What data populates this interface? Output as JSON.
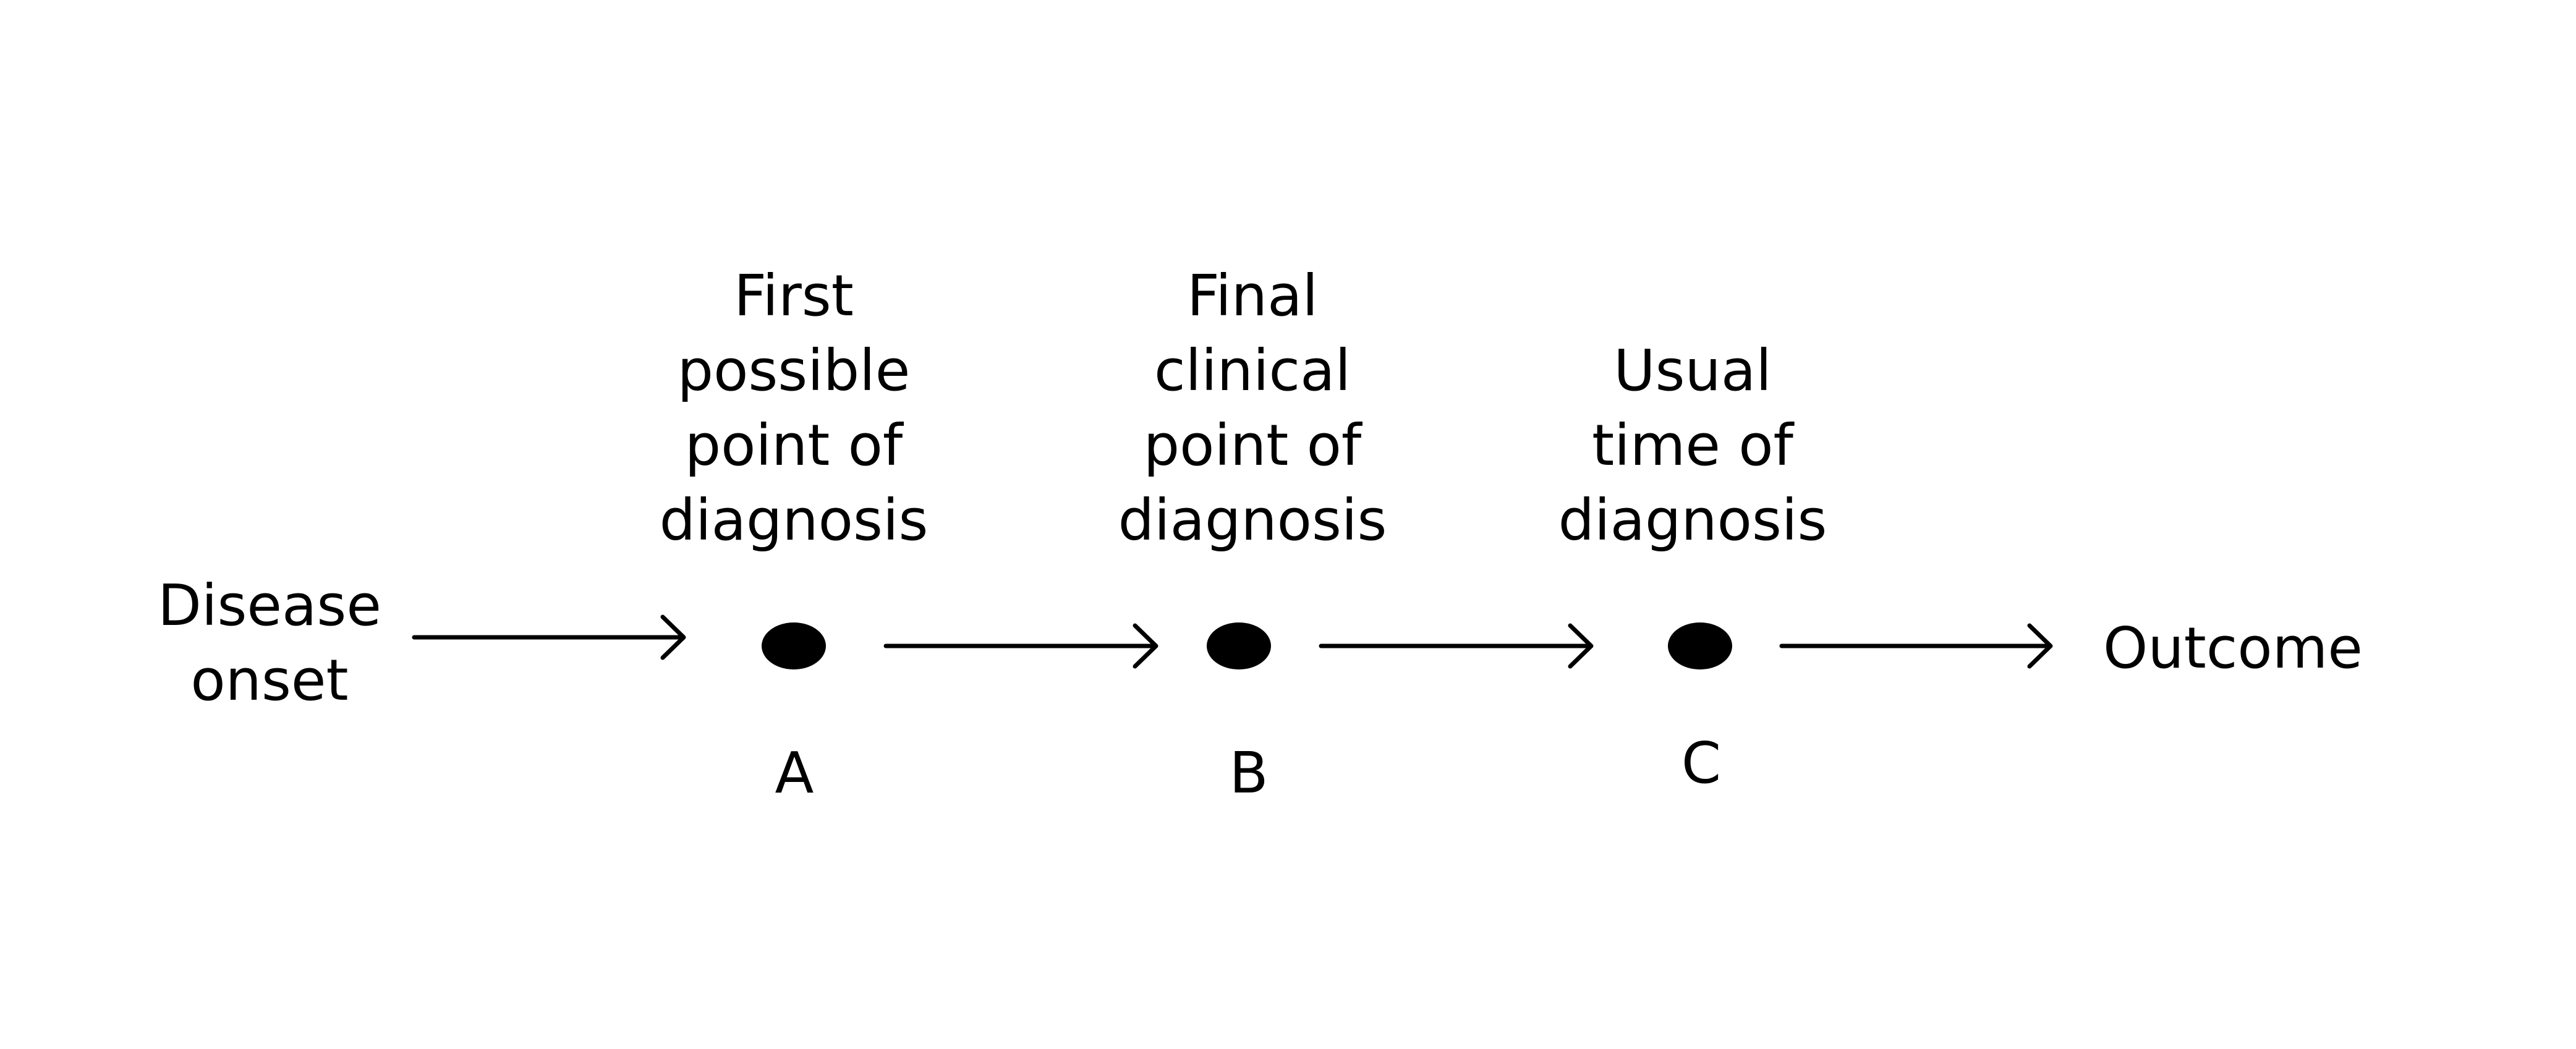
{
  "start": {
    "lines": [
      "Disease",
      "onset"
    ]
  },
  "end": {
    "label": "Outcome"
  },
  "points": [
    {
      "id": "A",
      "marker": "A",
      "lines": [
        "First",
        "possible",
        "point of",
        "diagnosis"
      ]
    },
    {
      "id": "B",
      "marker": "B",
      "lines": [
        "Final",
        "clinical",
        "point of",
        "diagnosis"
      ]
    },
    {
      "id": "C",
      "marker": "C",
      "lines": [
        "Usual",
        "time of",
        "diagnosis"
      ]
    }
  ],
  "colors": {
    "ink": "#000000",
    "background": "#ffffff"
  }
}
